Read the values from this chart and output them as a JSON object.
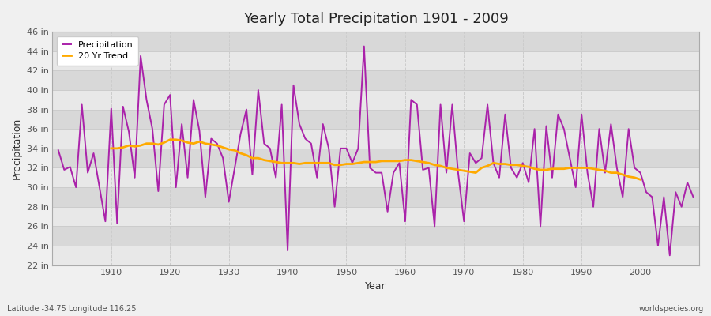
{
  "title": "Yearly Total Precipitation 1901 - 2009",
  "xlabel": "Year",
  "ylabel": "Precipitation",
  "lat_lon_label": "Latitude -34.75 Longitude 116.25",
  "source_label": "worldspecies.org",
  "precip_color": "#aa22aa",
  "trend_color": "#ffaa00",
  "bg_color": "#f0f0f0",
  "plot_bg_light": "#e8e8e8",
  "plot_bg_dark": "#d8d8d8",
  "grid_color": "#cccccc",
  "years": [
    1901,
    1902,
    1903,
    1904,
    1905,
    1906,
    1907,
    1908,
    1909,
    1910,
    1911,
    1912,
    1913,
    1914,
    1915,
    1916,
    1917,
    1918,
    1919,
    1920,
    1921,
    1922,
    1923,
    1924,
    1925,
    1926,
    1927,
    1928,
    1929,
    1930,
    1931,
    1932,
    1933,
    1934,
    1935,
    1936,
    1937,
    1938,
    1939,
    1940,
    1941,
    1942,
    1943,
    1944,
    1945,
    1946,
    1947,
    1948,
    1949,
    1950,
    1951,
    1952,
    1953,
    1954,
    1955,
    1956,
    1957,
    1958,
    1959,
    1960,
    1961,
    1962,
    1963,
    1964,
    1965,
    1966,
    1967,
    1968,
    1969,
    1970,
    1971,
    1972,
    1973,
    1974,
    1975,
    1976,
    1977,
    1978,
    1979,
    1980,
    1981,
    1982,
    1983,
    1984,
    1985,
    1986,
    1987,
    1988,
    1989,
    1990,
    1991,
    1992,
    1993,
    1994,
    1995,
    1996,
    1997,
    1998,
    1999,
    2000,
    2001,
    2002,
    2003,
    2004,
    2005,
    2006,
    2007,
    2008,
    2009
  ],
  "precip_in": [
    33.8,
    31.8,
    32.1,
    30.0,
    38.5,
    31.5,
    33.5,
    30.0,
    26.5,
    38.1,
    26.3,
    38.3,
    35.7,
    31.0,
    43.5,
    39.0,
    36.0,
    29.6,
    38.5,
    39.5,
    30.0,
    36.5,
    31.0,
    39.0,
    35.8,
    29.0,
    35.0,
    34.5,
    33.0,
    28.5,
    32.0,
    35.5,
    38.0,
    31.3,
    40.0,
    34.5,
    34.0,
    31.0,
    38.5,
    23.5,
    40.5,
    36.5,
    35.0,
    34.5,
    31.0,
    36.5,
    34.0,
    28.0,
    34.0,
    34.0,
    32.5,
    34.0,
    44.5,
    32.0,
    31.5,
    31.5,
    27.5,
    31.5,
    32.5,
    26.5,
    39.0,
    38.5,
    31.8,
    32.0,
    26.0,
    38.5,
    31.5,
    38.5,
    31.5,
    26.5,
    33.5,
    32.5,
    33.0,
    38.5,
    32.5,
    31.0,
    37.5,
    32.0,
    31.0,
    32.5,
    30.5,
    36.0,
    26.0,
    36.3,
    31.0,
    37.5,
    36.0,
    33.0,
    30.0,
    37.5,
    31.5,
    28.0,
    36.0,
    31.5,
    36.5,
    32.0,
    29.0,
    36.0,
    32.0,
    31.5,
    29.5,
    29.0,
    24.0,
    29.0,
    23.0,
    29.5,
    28.0,
    30.5,
    29.0
  ],
  "trend_in": [
    null,
    null,
    null,
    null,
    null,
    null,
    null,
    null,
    null,
    34.0,
    34.0,
    34.1,
    34.3,
    34.2,
    34.3,
    34.5,
    34.5,
    34.4,
    34.6,
    34.9,
    34.9,
    34.8,
    34.6,
    34.5,
    34.7,
    34.5,
    34.4,
    34.3,
    34.1,
    33.9,
    33.8,
    33.5,
    33.3,
    33.0,
    33.0,
    32.8,
    32.7,
    32.6,
    32.5,
    32.5,
    32.5,
    32.4,
    32.5,
    32.5,
    32.5,
    32.5,
    32.5,
    32.3,
    32.3,
    32.4,
    32.4,
    32.5,
    32.6,
    32.6,
    32.6,
    32.7,
    32.7,
    32.7,
    32.7,
    32.8,
    32.8,
    32.7,
    32.6,
    32.5,
    32.3,
    32.2,
    32.0,
    31.9,
    31.8,
    31.7,
    31.6,
    31.5,
    32.0,
    32.2,
    32.5,
    32.4,
    32.4,
    32.3,
    32.3,
    32.2,
    32.1,
    31.9,
    31.8,
    31.8,
    31.9,
    31.9,
    31.9,
    32.0,
    32.0,
    32.0,
    32.0,
    31.9,
    31.8,
    31.7,
    31.5,
    31.5,
    31.3,
    31.1,
    31.0,
    30.8,
    null,
    null,
    null,
    null,
    null,
    null,
    null,
    null,
    null
  ],
  "ylim_min": 22,
  "ylim_max": 46,
  "yticks": [
    22,
    24,
    26,
    28,
    30,
    32,
    34,
    36,
    38,
    40,
    42,
    44,
    46
  ],
  "xlim_min": 1901,
  "xlim_max": 2009,
  "xticks": [
    1910,
    1920,
    1930,
    1940,
    1950,
    1960,
    1970,
    1980,
    1990,
    2000
  ]
}
